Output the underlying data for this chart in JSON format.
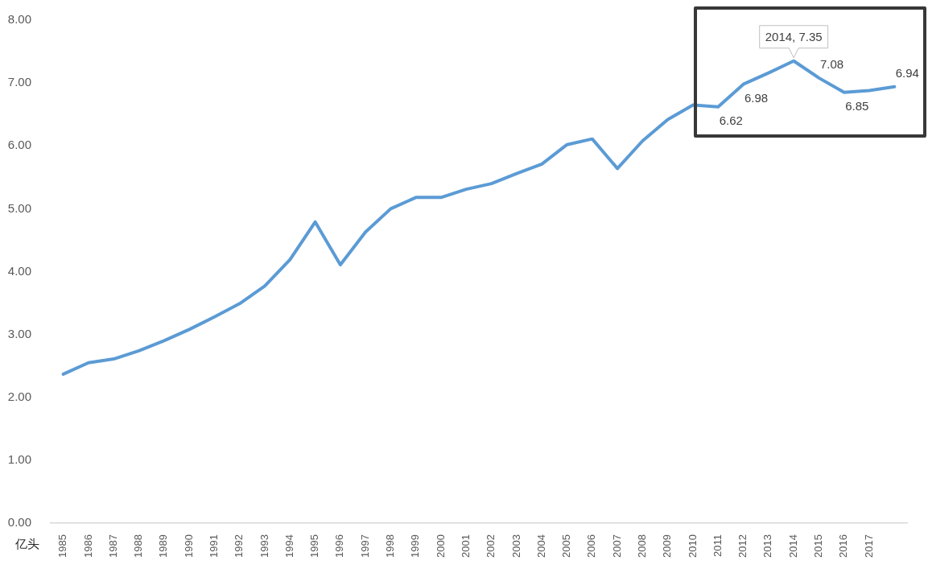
{
  "chart_data": {
    "type": "line",
    "ylabel": "亿头",
    "categories": [
      "1985",
      "1986",
      "1987",
      "1988",
      "1989",
      "1990",
      "1991",
      "1992",
      "1993",
      "1994",
      "1995",
      "1996",
      "1997",
      "1998",
      "1999",
      "2000",
      "2001",
      "2002",
      "2003",
      "2004",
      "2005",
      "2006",
      "2007",
      "2008",
      "2009",
      "2010",
      "2011",
      "2012",
      "2013",
      "2014",
      "2015",
      "2016",
      "2017",
      null
    ],
    "values": [
      2.37,
      2.55,
      2.61,
      2.74,
      2.9,
      3.08,
      3.28,
      3.49,
      3.77,
      4.19,
      4.79,
      4.11,
      4.63,
      5.0,
      5.18,
      5.18,
      5.31,
      5.4,
      5.56,
      5.71,
      6.02,
      6.11,
      5.64,
      6.08,
      6.42,
      6.65,
      6.62,
      6.98,
      7.16,
      7.35,
      7.08,
      6.85,
      6.88,
      6.94
    ],
    "value_labels": [
      null,
      null,
      null,
      null,
      null,
      null,
      null,
      null,
      null,
      null,
      null,
      null,
      null,
      null,
      null,
      null,
      null,
      null,
      null,
      null,
      null,
      null,
      null,
      null,
      null,
      null,
      "6.62",
      "6.98",
      null,
      null,
      "7.08",
      "6.85",
      null,
      "6.94"
    ],
    "annotations": [
      {
        "text": "2014, 7.35",
        "x": "2014",
        "y": 7.35
      }
    ],
    "color": "#5b9bd5",
    "marker": "none",
    "line_style": "solid",
    "grid": false,
    "ylim": [
      0,
      8
    ],
    "yticks": [
      {
        "value": 0,
        "label": "0.00"
      },
      {
        "value": 1,
        "label": "1.00"
      },
      {
        "value": 2,
        "label": "2.00"
      },
      {
        "value": 3,
        "label": "3.00"
      },
      {
        "value": 4,
        "label": "4.00"
      },
      {
        "value": 5,
        "label": "5.00"
      },
      {
        "value": 6,
        "label": "6.00"
      },
      {
        "value": 7,
        "label": "7.00"
      },
      {
        "value": 8,
        "label": "8.00"
      }
    ]
  }
}
